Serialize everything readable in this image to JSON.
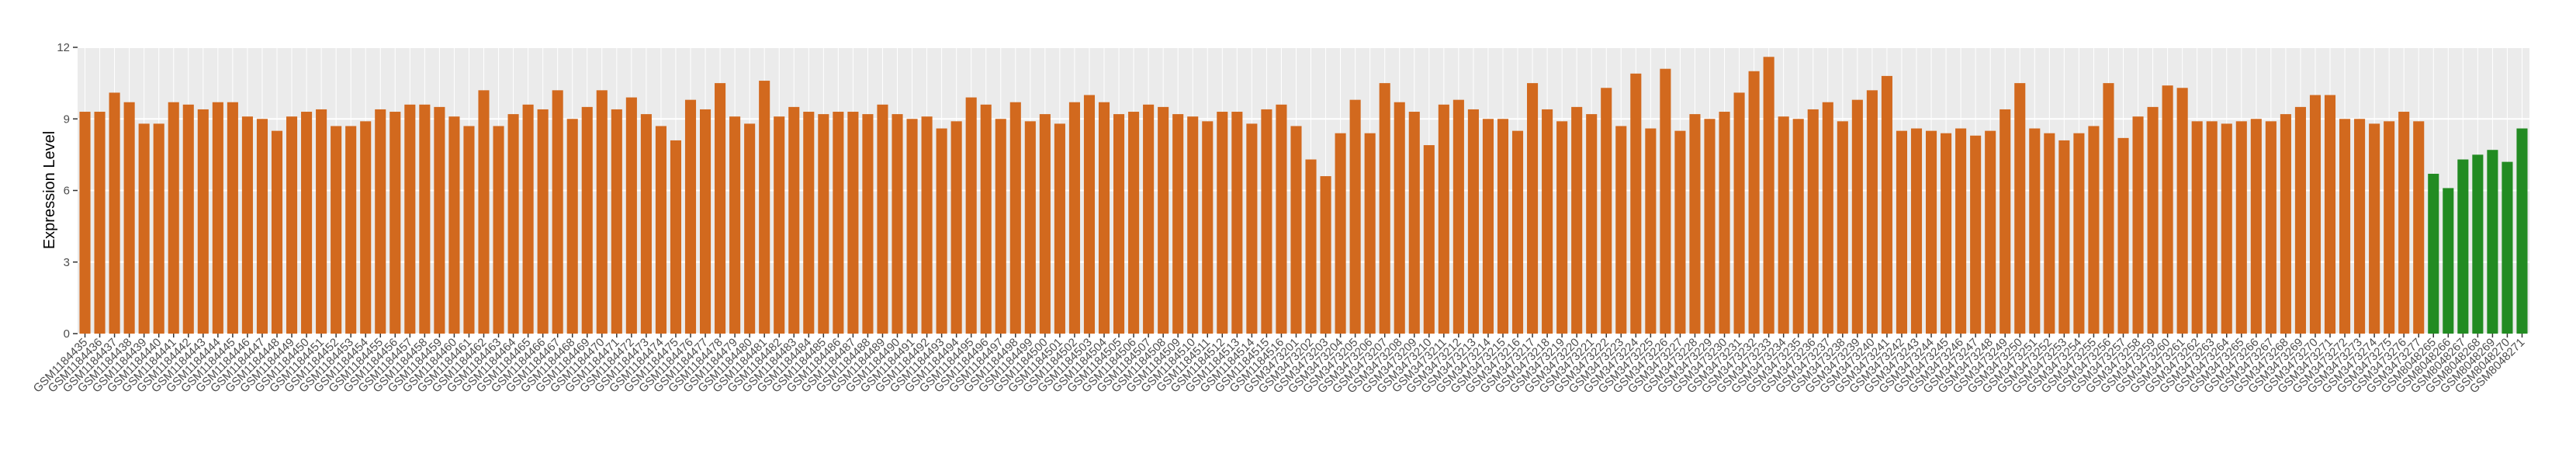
{
  "chart_data": {
    "type": "bar",
    "y_label": "Expression Level",
    "categories": [
      "GSM1184435",
      "GSM1184436",
      "GSM1184437",
      "GSM1184438",
      "GSM1184439",
      "GSM1184440",
      "GSM1184441",
      "GSM1184442",
      "GSM1184443",
      "GSM1184444",
      "GSM1184445",
      "GSM1184446",
      "GSM1184447",
      "GSM1184448",
      "GSM1184449",
      "GSM1184450",
      "GSM1184451",
      "GSM1184452",
      "GSM1184453",
      "GSM1184454",
      "GSM1184455",
      "GSM1184456",
      "GSM1184457",
      "GSM1184458",
      "GSM1184459",
      "GSM1184460",
      "GSM1184461",
      "GSM1184462",
      "GSM1184463",
      "GSM1184464",
      "GSM1184465",
      "GSM1184466",
      "GSM1184467",
      "GSM1184468",
      "GSM1184469",
      "GSM1184470",
      "GSM1184471",
      "GSM1184472",
      "GSM1184473",
      "GSM1184474",
      "GSM1184475",
      "GSM1184476",
      "GSM1184477",
      "GSM1184478",
      "GSM1184479",
      "GSM1184480",
      "GSM1184481",
      "GSM1184482",
      "GSM1184483",
      "GSM1184484",
      "GSM1184485",
      "GSM1184486",
      "GSM1184487",
      "GSM1184488",
      "GSM1184489",
      "GSM1184490",
      "GSM1184491",
      "GSM1184492",
      "GSM1184493",
      "GSM1184494",
      "GSM1184495",
      "GSM1184496",
      "GSM1184497",
      "GSM1184498",
      "GSM1184499",
      "GSM1184500",
      "GSM1184501",
      "GSM1184502",
      "GSM1184503",
      "GSM1184504",
      "GSM1184505",
      "GSM1184506",
      "GSM1184507",
      "GSM1184508",
      "GSM1184509",
      "GSM1184510",
      "GSM1184511",
      "GSM1184512",
      "GSM1184513",
      "GSM1184514",
      "GSM1184515",
      "GSM1184516",
      "GSM3473201",
      "GSM3473202",
      "GSM3473203",
      "GSM3473204",
      "GSM3473205",
      "GSM3473206",
      "GSM3473207",
      "GSM3473208",
      "GSM3473209",
      "GSM3473210",
      "GSM3473211",
      "GSM3473212",
      "GSM3473213",
      "GSM3473214",
      "GSM3473215",
      "GSM3473216",
      "GSM3473217",
      "GSM3473218",
      "GSM3473219",
      "GSM3473220",
      "GSM3473221",
      "GSM3473222",
      "GSM3473223",
      "GSM3473224",
      "GSM3473225",
      "GSM3473226",
      "GSM3473227",
      "GSM3473228",
      "GSM3473229",
      "GSM3473230",
      "GSM3473231",
      "GSM3473232",
      "GSM3473233",
      "GSM3473234",
      "GSM3473235",
      "GSM3473236",
      "GSM3473237",
      "GSM3473238",
      "GSM3473239",
      "GSM3473240",
      "GSM3473241",
      "GSM3473242",
      "GSM3473243",
      "GSM3473244",
      "GSM3473245",
      "GSM3473246",
      "GSM3473247",
      "GSM3473248",
      "GSM3473249",
      "GSM3473250",
      "GSM3473251",
      "GSM3473252",
      "GSM3473253",
      "GSM3473254",
      "GSM3473255",
      "GSM3473256",
      "GSM3473257",
      "GSM3473258",
      "GSM3473259",
      "GSM3473260",
      "GSM3473261",
      "GSM3473262",
      "GSM3473263",
      "GSM3473264",
      "GSM3473265",
      "GSM3473266",
      "GSM3473267",
      "GSM3473268",
      "GSM3473269",
      "GSM3473270",
      "GSM3473271",
      "GSM3473272",
      "GSM3473273",
      "GSM3473274",
      "GSM3473275",
      "GSM3473276",
      "GSM3473277",
      "GSM8048265",
      "GSM8048266",
      "GSM8048267",
      "GSM8048268",
      "GSM8048269",
      "GSM8048270",
      "GSM8048271"
    ],
    "series": [
      {
        "color": "#d2691e",
        "values": [
          9.3,
          9.3,
          10.1,
          9.7,
          8.8,
          8.8,
          9.7,
          9.6,
          9.4,
          9.7,
          9.7,
          9.1,
          9.0,
          8.5,
          9.1,
          9.3,
          9.4,
          8.7,
          8.7,
          8.9,
          9.4,
          9.3,
          9.6,
          9.6,
          9.5,
          9.1,
          8.7,
          10.2,
          8.7,
          9.2,
          9.6,
          9.4,
          10.2,
          9.0,
          9.5,
          10.2,
          9.4,
          9.9,
          9.2,
          8.7,
          8.1,
          9.8,
          9.4,
          10.5,
          9.1,
          8.8,
          10.6,
          9.1,
          9.5,
          9.3,
          9.2,
          9.3,
          9.3,
          9.2,
          9.6,
          9.2,
          9.0,
          9.1,
          8.6,
          8.9,
          9.9,
          9.6,
          9.0,
          9.7,
          8.9,
          9.2,
          8.8,
          9.7,
          10.0,
          9.7,
          9.2,
          9.3,
          9.6,
          9.5,
          9.2,
          9.1,
          8.9,
          9.3,
          9.3,
          8.8,
          9.4,
          9.6,
          8.7,
          7.3,
          6.6,
          8.4,
          9.8,
          8.4,
          10.5,
          9.7,
          9.3,
          7.9,
          9.6,
          9.8,
          9.4,
          9.0,
          9.0,
          8.5,
          10.5,
          9.4,
          8.9,
          9.5,
          9.2,
          10.3,
          8.7,
          10.9,
          8.6,
          11.1,
          8.5,
          9.2,
          9.0,
          9.3,
          10.1,
          11.0,
          11.6,
          9.1,
          9.0,
          9.4,
          9.7,
          8.9,
          9.8,
          10.2,
          10.8,
          8.5,
          8.6,
          8.5,
          8.4,
          8.6,
          8.3,
          8.5,
          9.4,
          10.5,
          8.6,
          8.4,
          8.1,
          8.4,
          8.7,
          10.5,
          8.2,
          9.1,
          9.5,
          10.4,
          10.3,
          8.9,
          8.9,
          8.8,
          8.9,
          9.0,
          8.9,
          9.2,
          9.5,
          10.0,
          10.0,
          9.0,
          9.0,
          8.8,
          8.9,
          9.3,
          8.9,
          null,
          null,
          null,
          null,
          null,
          null,
          null
        ]
      },
      {
        "color": "#228b22",
        "values": [
          null,
          null,
          null,
          null,
          null,
          null,
          null,
          null,
          null,
          null,
          null,
          null,
          null,
          null,
          null,
          null,
          null,
          null,
          null,
          null,
          null,
          null,
          null,
          null,
          null,
          null,
          null,
          null,
          null,
          null,
          null,
          null,
          null,
          null,
          null,
          null,
          null,
          null,
          null,
          null,
          null,
          null,
          null,
          null,
          null,
          null,
          null,
          null,
          null,
          null,
          null,
          null,
          null,
          null,
          null,
          null,
          null,
          null,
          null,
          null,
          null,
          null,
          null,
          null,
          null,
          null,
          null,
          null,
          null,
          null,
          null,
          null,
          null,
          null,
          null,
          null,
          null,
          null,
          null,
          null,
          null,
          null,
          null,
          null,
          null,
          null,
          null,
          null,
          null,
          null,
          null,
          null,
          null,
          null,
          null,
          null,
          null,
          null,
          null,
          null,
          null,
          null,
          null,
          null,
          null,
          null,
          null,
          null,
          null,
          null,
          null,
          null,
          null,
          null,
          null,
          null,
          null,
          null,
          null,
          null,
          null,
          null,
          null,
          null,
          null,
          null,
          null,
          null,
          null,
          null,
          null,
          null,
          null,
          null,
          null,
          null,
          null,
          null,
          null,
          null,
          null,
          null,
          null,
          null,
          null,
          null,
          null,
          null,
          null,
          null,
          null,
          null,
          null,
          null,
          null,
          null,
          null,
          null,
          null,
          6.7,
          6.1,
          7.3,
          7.5,
          7.7,
          7.2,
          8.6
        ]
      }
    ],
    "ylim": [
      0,
      12
    ],
    "yticks": [
      0,
      3,
      6,
      9,
      12
    ],
    "grid": true
  }
}
